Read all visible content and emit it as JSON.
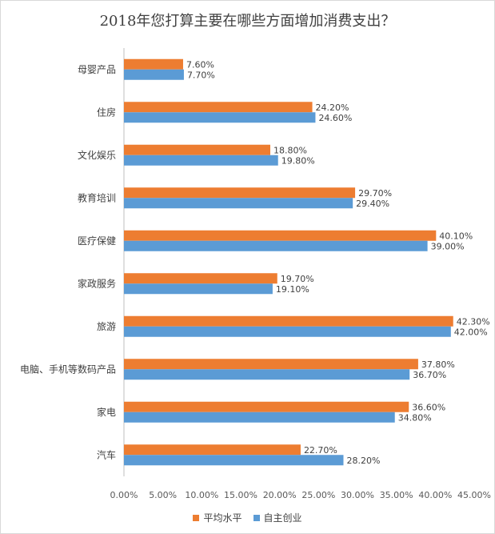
{
  "chart_data": {
    "type": "bar",
    "orientation": "horizontal",
    "title": "2018年您打算主要在哪些方面增加消费支出？",
    "categories": [
      "母婴产品",
      "住房",
      "文化娱乐",
      "教育培训",
      "医疗保健",
      "家政服务",
      "旅游",
      "电脑、手机等数码产品",
      "家电",
      "汽车"
    ],
    "series": [
      {
        "name": "平均水平",
        "color": "#ed7d31",
        "values": [
          7.6,
          24.2,
          18.8,
          29.7,
          40.1,
          19.7,
          42.3,
          37.8,
          36.6,
          22.7
        ],
        "labels": [
          "7.60%",
          "24.20%",
          "18.80%",
          "29.70%",
          "40.10%",
          "19.70%",
          "42.30%",
          "37.80%",
          "36.60%",
          "22.70%"
        ]
      },
      {
        "name": "自主创业",
        "color": "#5b9bd5",
        "values": [
          7.7,
          24.6,
          19.8,
          29.4,
          39.0,
          19.1,
          42.0,
          36.7,
          34.8,
          28.2
        ],
        "labels": [
          "7.70%",
          "24.60%",
          "19.80%",
          "29.40%",
          "39.00%",
          "19.10%",
          "42.00%",
          "36.70%",
          "34.80%",
          "28.20%"
        ]
      }
    ],
    "xlim": [
      0,
      45
    ],
    "xticks": [
      0,
      5,
      10,
      15,
      20,
      25,
      30,
      35,
      40,
      45
    ],
    "xtick_labels": [
      "0.00%",
      "5.00%",
      "10.00%",
      "15.00%",
      "20.00%",
      "25.00%",
      "30.00%",
      "35.00%",
      "40.00%",
      "45.00%"
    ],
    "xlabel": "",
    "ylabel": "",
    "grid": false,
    "legend_position": "bottom"
  }
}
